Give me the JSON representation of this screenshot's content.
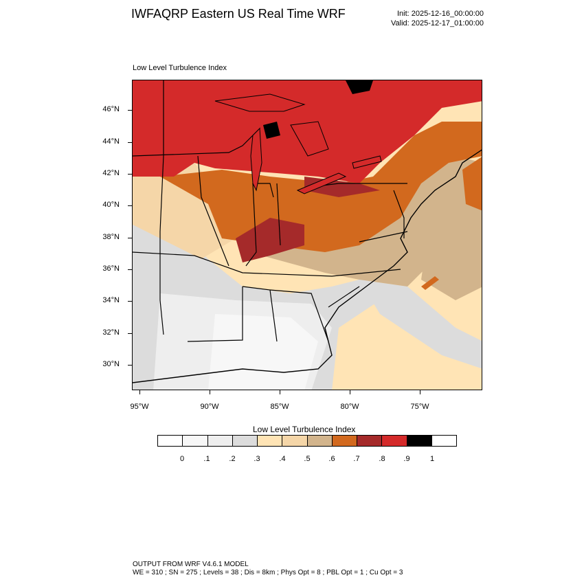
{
  "header": {
    "title": "IWFAQRP Eastern US Real Time WRF",
    "init": "Init: 2025-12-16_00:00:00",
    "valid": "Valid: 2025-12-17_01:00:00"
  },
  "panel": {
    "title": "Low Level Turbulence Index"
  },
  "axes": {
    "lat_labels": [
      "46°N",
      "44°N",
      "42°N",
      "40°N",
      "38°N",
      "36°N",
      "34°N",
      "32°N",
      "30°N"
    ],
    "lon_labels": [
      "95°W",
      "90°W",
      "85°W",
      "80°W",
      "75°W"
    ]
  },
  "colorbar": {
    "title": "Low Level Turbulence Index",
    "labels": [
      "0",
      ".1",
      ".2",
      ".3",
      ".4",
      ".5",
      ".6",
      ".7",
      ".8",
      ".9",
      "1"
    ],
    "colors": [
      "#ffffff",
      "#f7f7f7",
      "#eeeeee",
      "#dcdcdc",
      "#ffe4b5",
      "#f5d6a8",
      "#d2b48c",
      "#d2691e",
      "#a52a2a",
      "#d42a2a",
      "#000000"
    ]
  },
  "footer": {
    "line1": "OUTPUT FROM WRF V4.6.1 MODEL",
    "line2": "WE = 310 ; SN = 275 ; Levels = 38 ; Dis = 8km ; Phys Opt = 8 ; PBL Opt = 1 ; Cu Opt = 3"
  }
}
